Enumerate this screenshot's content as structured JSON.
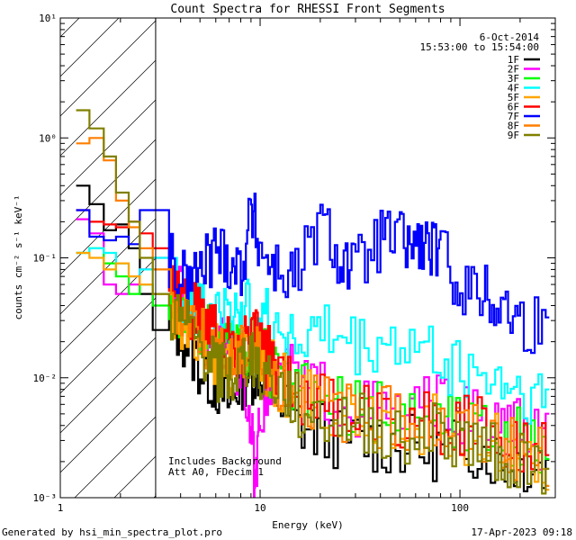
{
  "chart_data": {
    "type": "line",
    "title": "Count Spectra for RHESSI Front Segments",
    "xlabel": "Energy (keV)",
    "ylabel": "counts cm⁻² s⁻¹ keV⁻¹",
    "xscale": "log",
    "yscale": "log",
    "xlim": [
      1,
      300
    ],
    "ylim": [
      0.001,
      10
    ],
    "x_ticks": [
      "1",
      "10",
      "100"
    ],
    "y_ticks": [
      "10¹",
      "10⁰",
      "10⁻¹",
      "10⁻²",
      "10⁻³"
    ],
    "shaded_region": {
      "x_from": 1,
      "x_to": 3,
      "style": "hatched"
    },
    "date_label": "6-Oct-2014",
    "time_range_label": "15:53:00 to 15:54:00",
    "annotations": [
      "Includes Background",
      "Att A0, FDecim 1"
    ],
    "series": [
      {
        "name": "1F",
        "color": "#000000",
        "points": [
          [
            1.2,
            0.4
          ],
          [
            1.4,
            0.28
          ],
          [
            1.65,
            0.17
          ],
          [
            1.9,
            0.19
          ],
          [
            2.2,
            0.12
          ],
          [
            2.5,
            0.05
          ],
          [
            2.9,
            0.025
          ],
          [
            3.5,
            0.03
          ],
          [
            4.2,
            0.021
          ],
          [
            5,
            0.012
          ],
          [
            6,
            0.009
          ],
          [
            7,
            0.006
          ],
          [
            8,
            0.01
          ],
          [
            9,
            0.011
          ],
          [
            10,
            0.012
          ],
          [
            12,
            0.007
          ],
          [
            15,
            0.004
          ],
          [
            20,
            0.0035
          ],
          [
            30,
            0.003
          ],
          [
            45,
            0.0028
          ],
          [
            70,
            0.0025
          ],
          [
            100,
            0.003
          ],
          [
            150,
            0.0022
          ],
          [
            200,
            0.002
          ],
          [
            280,
            0.0017
          ]
        ]
      },
      {
        "name": "2F",
        "color": "#ff00ff",
        "points": [
          [
            1.2,
            0.21
          ],
          [
            1.4,
            0.16
          ],
          [
            1.65,
            0.06
          ],
          [
            1.9,
            0.05
          ],
          [
            2.2,
            0.06
          ],
          [
            2.5,
            0.08
          ],
          [
            2.9,
            0.1
          ],
          [
            3.5,
            0.06
          ],
          [
            4.2,
            0.04
          ],
          [
            5,
            0.03
          ],
          [
            6,
            0.02
          ],
          [
            7,
            0.015
          ],
          [
            8,
            0.012
          ],
          [
            9,
            0.004
          ],
          [
            9.5,
            0.0009
          ],
          [
            10,
            0.006
          ],
          [
            12,
            0.012
          ],
          [
            15,
            0.01
          ],
          [
            20,
            0.008
          ],
          [
            30,
            0.006
          ],
          [
            45,
            0.005
          ],
          [
            70,
            0.006
          ],
          [
            100,
            0.005
          ],
          [
            150,
            0.004
          ],
          [
            200,
            0.0035
          ],
          [
            280,
            0.003
          ]
        ]
      },
      {
        "name": "3F",
        "color": "#00ff00",
        "points": [
          [
            1.2,
            0.11
          ],
          [
            1.4,
            0.12
          ],
          [
            1.65,
            0.09
          ],
          [
            1.9,
            0.07
          ],
          [
            2.2,
            0.05
          ],
          [
            2.5,
            0.06
          ],
          [
            2.9,
            0.04
          ],
          [
            3.5,
            0.045
          ],
          [
            4.2,
            0.035
          ],
          [
            5,
            0.025
          ],
          [
            6,
            0.02
          ],
          [
            7,
            0.018
          ],
          [
            8,
            0.02
          ],
          [
            9,
            0.018
          ],
          [
            10,
            0.015
          ],
          [
            12,
            0.01
          ],
          [
            15,
            0.008
          ],
          [
            20,
            0.006
          ],
          [
            30,
            0.005
          ],
          [
            45,
            0.005
          ],
          [
            70,
            0.0045
          ],
          [
            100,
            0.004
          ],
          [
            150,
            0.0035
          ],
          [
            200,
            0.003
          ],
          [
            280,
            0.0025
          ]
        ]
      },
      {
        "name": "4F",
        "color": "#00ffff",
        "points": [
          [
            1.2,
            0.11
          ],
          [
            1.4,
            0.12
          ],
          [
            1.65,
            0.11
          ],
          [
            1.9,
            0.09
          ],
          [
            2.2,
            0.07
          ],
          [
            2.5,
            0.08
          ],
          [
            2.9,
            0.1
          ],
          [
            3.5,
            0.07
          ],
          [
            4.2,
            0.05
          ],
          [
            5,
            0.04
          ],
          [
            6,
            0.035
          ],
          [
            7,
            0.03
          ],
          [
            8,
            0.04
          ],
          [
            9,
            0.035
          ],
          [
            10,
            0.03
          ],
          [
            12,
            0.03
          ],
          [
            15,
            0.02
          ],
          [
            20,
            0.025
          ],
          [
            30,
            0.018
          ],
          [
            45,
            0.02
          ],
          [
            70,
            0.016
          ],
          [
            100,
            0.012
          ],
          [
            150,
            0.01
          ],
          [
            200,
            0.008
          ],
          [
            280,
            0.006
          ]
        ]
      },
      {
        "name": "5F",
        "color": "#ffa500",
        "points": [
          [
            1.2,
            0.11
          ],
          [
            1.4,
            0.1
          ],
          [
            1.65,
            0.08
          ],
          [
            1.9,
            0.09
          ],
          [
            2.2,
            0.07
          ],
          [
            2.5,
            0.06
          ],
          [
            2.9,
            0.05
          ],
          [
            3.5,
            0.04
          ],
          [
            4.2,
            0.03
          ],
          [
            5,
            0.02
          ],
          [
            6,
            0.015
          ],
          [
            7,
            0.012
          ],
          [
            8,
            0.015
          ],
          [
            9,
            0.018
          ],
          [
            10,
            0.015
          ],
          [
            12,
            0.01
          ],
          [
            15,
            0.007
          ],
          [
            20,
            0.006
          ],
          [
            30,
            0.005
          ],
          [
            45,
            0.0045
          ],
          [
            70,
            0.004
          ],
          [
            100,
            0.0035
          ],
          [
            150,
            0.003
          ],
          [
            200,
            0.0025
          ],
          [
            280,
            0.002
          ]
        ]
      },
      {
        "name": "6F",
        "color": "#ff0000",
        "points": [
          [
            1.2,
            0.25
          ],
          [
            1.4,
            0.2
          ],
          [
            1.65,
            0.19
          ],
          [
            1.9,
            0.18
          ],
          [
            2.2,
            0.2
          ],
          [
            2.5,
            0.16
          ],
          [
            2.9,
            0.12
          ],
          [
            3.5,
            0.06
          ],
          [
            4.2,
            0.04
          ],
          [
            5,
            0.03
          ],
          [
            6,
            0.022
          ],
          [
            7,
            0.018
          ],
          [
            8,
            0.02
          ],
          [
            9,
            0.022
          ],
          [
            10,
            0.018
          ],
          [
            12,
            0.012
          ],
          [
            15,
            0.008
          ],
          [
            20,
            0.006
          ],
          [
            30,
            0.005
          ],
          [
            45,
            0.005
          ],
          [
            70,
            0.0045
          ],
          [
            100,
            0.004
          ],
          [
            150,
            0.0035
          ],
          [
            200,
            0.003
          ],
          [
            280,
            0.0025
          ]
        ]
      },
      {
        "name": "7F",
        "color": "#0000ff",
        "points": [
          [
            1.2,
            0.25
          ],
          [
            1.4,
            0.15
          ],
          [
            1.65,
            0.14
          ],
          [
            1.9,
            0.15
          ],
          [
            2.2,
            0.13
          ],
          [
            2.5,
            0.25
          ],
          [
            2.9,
            0.25
          ],
          [
            3.5,
            0.09
          ],
          [
            4.2,
            0.06
          ],
          [
            5,
            0.08
          ],
          [
            6,
            0.12
          ],
          [
            7,
            0.1
          ],
          [
            8,
            0.08
          ],
          [
            9,
            0.25
          ],
          [
            10,
            0.12
          ],
          [
            12,
            0.08
          ],
          [
            15,
            0.07
          ],
          [
            20,
            0.2
          ],
          [
            25,
            0.1
          ],
          [
            30,
            0.08
          ],
          [
            40,
            0.15
          ],
          [
            50,
            0.14
          ],
          [
            60,
            0.13
          ],
          [
            70,
            0.12
          ],
          [
            80,
            0.1
          ],
          [
            100,
            0.06
          ],
          [
            130,
            0.05
          ],
          [
            160,
            0.04
          ],
          [
            200,
            0.03
          ],
          [
            280,
            0.025
          ]
        ]
      },
      {
        "name": "8F",
        "color": "#ff7f00",
        "points": [
          [
            1.2,
            0.9
          ],
          [
            1.4,
            1.0
          ],
          [
            1.65,
            0.65
          ],
          [
            1.9,
            0.3
          ],
          [
            2.2,
            0.18
          ],
          [
            2.5,
            0.12
          ],
          [
            2.9,
            0.08
          ],
          [
            3.5,
            0.05
          ],
          [
            4.2,
            0.035
          ],
          [
            5,
            0.025
          ],
          [
            6,
            0.015
          ],
          [
            7,
            0.012
          ],
          [
            8,
            0.015
          ],
          [
            9,
            0.018
          ],
          [
            10,
            0.015
          ],
          [
            12,
            0.01
          ],
          [
            15,
            0.008
          ],
          [
            20,
            0.006
          ],
          [
            30,
            0.005
          ],
          [
            45,
            0.0045
          ],
          [
            70,
            0.004
          ],
          [
            100,
            0.0035
          ],
          [
            150,
            0.003
          ],
          [
            200,
            0.0025
          ],
          [
            280,
            0.002
          ]
        ]
      },
      {
        "name": "9F",
        "color": "#808000",
        "points": [
          [
            1.2,
            1.7
          ],
          [
            1.4,
            1.2
          ],
          [
            1.65,
            0.7
          ],
          [
            1.9,
            0.35
          ],
          [
            2.2,
            0.2
          ],
          [
            2.5,
            0.1
          ],
          [
            2.9,
            0.05
          ],
          [
            3.5,
            0.035
          ],
          [
            4.2,
            0.025
          ],
          [
            5,
            0.018
          ],
          [
            6,
            0.012
          ],
          [
            7,
            0.009
          ],
          [
            8,
            0.012
          ],
          [
            9,
            0.015
          ],
          [
            10,
            0.012
          ],
          [
            12,
            0.008
          ],
          [
            15,
            0.006
          ],
          [
            20,
            0.0045
          ],
          [
            30,
            0.004
          ],
          [
            45,
            0.0035
          ],
          [
            70,
            0.0035
          ],
          [
            100,
            0.003
          ],
          [
            150,
            0.0025
          ],
          [
            200,
            0.002
          ],
          [
            280,
            0.0018
          ]
        ]
      }
    ]
  },
  "footer": {
    "left": "Generated by hsi_min_spectra_plot.pro",
    "right": "17-Apr-2023 09:18"
  }
}
